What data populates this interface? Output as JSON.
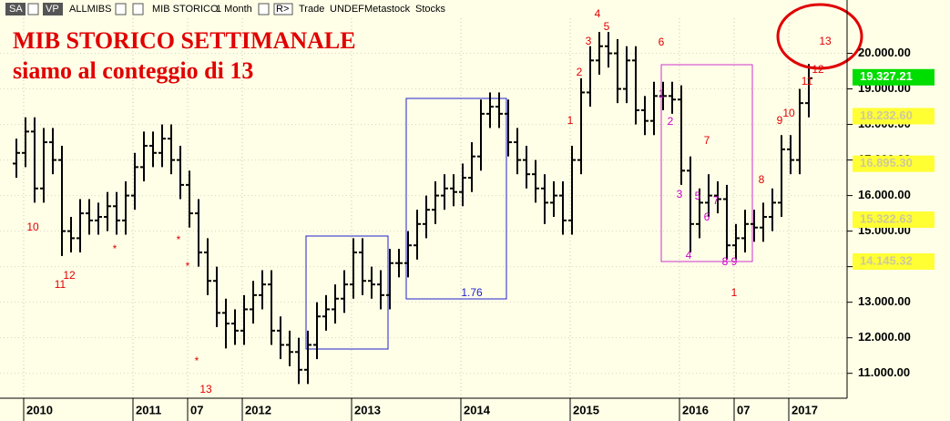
{
  "toolbar": [
    "SA",
    "VP",
    "ALLMIBS",
    "MIB STORICO",
    "1 Month",
    "R>",
    "Trade",
    "UNDEF",
    "Metastock",
    "Stocks"
  ],
  "chart_data": {
    "type": "ohlc",
    "title": "MIB STORICO SETTIMANALE",
    "subtitle": "siamo al conteggio di 13",
    "color": "#000000",
    "categories": [
      null,
      "2010",
      null,
      null,
      null,
      null,
      null,
      null,
      null,
      null,
      null,
      null,
      null,
      "2011",
      null,
      null,
      null,
      null,
      null,
      "07",
      null,
      null,
      null,
      null,
      null,
      "2012",
      null,
      null,
      null,
      null,
      null,
      null,
      null,
      null,
      null,
      null,
      null,
      "2013",
      null,
      null,
      null,
      null,
      null,
      null,
      null,
      null,
      null,
      null,
      null,
      "2014",
      null,
      null,
      null,
      null,
      null,
      null,
      null,
      null,
      null,
      null,
      null,
      "2015",
      null,
      null,
      null,
      null,
      null,
      null,
      null,
      null,
      null,
      null,
      null,
      "2016",
      null,
      null,
      null,
      null,
      null,
      "07",
      null,
      null,
      null,
      null,
      null,
      "2017",
      null,
      null
    ],
    "open": [
      16900,
      17200,
      17800,
      16200,
      17500,
      17000,
      15000,
      14800,
      15500,
      15300,
      15400,
      15700,
      15300,
      16000,
      16800,
      17400,
      17200,
      17600,
      17000,
      16300,
      15500,
      14400,
      13600,
      12700,
      12400,
      12200,
      12800,
      13200,
      13500,
      12200,
      11800,
      11600,
      11100,
      11800,
      12600,
      12800,
      13100,
      13500,
      14400,
      13600,
      13500,
      13200,
      14100,
      14100,
      14600,
      15200,
      15600,
      16000,
      16200,
      16100,
      16500,
      17100,
      18300,
      18500,
      18300,
      17500,
      17000,
      16600,
      16200,
      15800,
      16000,
      15300,
      17000,
      18900,
      19800,
      20200,
      20000,
      19000,
      19800,
      18400,
      18100,
      18800,
      18800,
      18700,
      16700,
      15200,
      15800,
      16000,
      15900,
      14600,
      14800,
      15200,
      15100,
      15400,
      15800,
      17300,
      17000,
      18600
    ],
    "high": [
      17600,
      18200,
      18200,
      17900,
      17900,
      17400,
      15400,
      15900,
      15900,
      15800,
      16100,
      16100,
      16400,
      17200,
      17800,
      17800,
      18000,
      18000,
      17400,
      16700,
      15900,
      14800,
      14000,
      13100,
      12800,
      13200,
      13600,
      13900,
      13900,
      12600,
      12200,
      12000,
      12200,
      13000,
      13200,
      13500,
      13900,
      14800,
      14800,
      14000,
      13900,
      14500,
      14500,
      15000,
      15600,
      16000,
      16400,
      16600,
      16600,
      16900,
      17500,
      18700,
      18900,
      18900,
      18700,
      17900,
      17400,
      17000,
      16600,
      16400,
      16400,
      17400,
      19300,
      20200,
      20600,
      20600,
      20400,
      20200,
      20200,
      18800,
      19200,
      19200,
      19200,
      19100,
      17100,
      16200,
      16600,
      16400,
      16300,
      15200,
      15600,
      15600,
      15800,
      16200,
      17700,
      17700,
      19000,
      19700
    ],
    "low": [
      16500,
      16800,
      15800,
      15800,
      16600,
      14300,
      14400,
      14400,
      14900,
      14900,
      15000,
      14900,
      14900,
      15600,
      16400,
      16800,
      16800,
      16600,
      15900,
      15100,
      14000,
      13200,
      12300,
      11700,
      11800,
      11800,
      12400,
      12800,
      11800,
      11400,
      11200,
      10700,
      10700,
      11400,
      12200,
      12400,
      12700,
      13100,
      13200,
      13100,
      12800,
      12800,
      13700,
      13700,
      14200,
      14800,
      15200,
      15600,
      15700,
      15700,
      16100,
      16700,
      17900,
      17900,
      17100,
      16600,
      16200,
      15800,
      15200,
      15400,
      14900,
      14900,
      16600,
      18500,
      19400,
      19600,
      18600,
      18600,
      18000,
      17700,
      17700,
      18400,
      18300,
      16300,
      14400,
      14800,
      15400,
      15500,
      14200,
      14200,
      14400,
      14700,
      14700,
      15000,
      15400,
      16600,
      16600,
      18200
    ],
    "close": [
      17200,
      17800,
      16200,
      17500,
      17000,
      15000,
      14800,
      15500,
      15300,
      15400,
      15700,
      15300,
      16000,
      16800,
      17400,
      17200,
      17600,
      17000,
      16300,
      15500,
      14400,
      13600,
      12700,
      12400,
      12200,
      12800,
      13200,
      13500,
      12200,
      11800,
      11600,
      11100,
      11800,
      12600,
      12800,
      13100,
      13500,
      14400,
      13600,
      13500,
      13200,
      14100,
      14100,
      14600,
      15200,
      15600,
      16000,
      16200,
      16100,
      16500,
      17100,
      18300,
      18500,
      18300,
      17500,
      17000,
      16600,
      16200,
      15800,
      16000,
      15300,
      17000,
      18900,
      19800,
      20200,
      20000,
      19000,
      19800,
      18400,
      18100,
      18800,
      18800,
      18700,
      16700,
      15200,
      15800,
      16000,
      15900,
      14600,
      14800,
      15200,
      15100,
      15400,
      15800,
      17300,
      17000,
      18600,
      19300
    ],
    "ylim": [
      10300,
      21500
    ],
    "yticks": [
      {
        "value": 11000,
        "label": "11.000.00"
      },
      {
        "value": 12000,
        "label": "12.000.00"
      },
      {
        "value": 13000,
        "label": "13.000.00"
      },
      {
        "value": 14000,
        "label": "14.000.00"
      },
      {
        "value": 15000,
        "label": "15.000.00"
      },
      {
        "value": 16000,
        "label": "16.000.00"
      },
      {
        "value": 17000,
        "label": "17.000.00"
      },
      {
        "value": 18000,
        "label": "18.000.00"
      },
      {
        "value": 19000,
        "label": "19.000.00"
      },
      {
        "value": 20000,
        "label": "20.000.00"
      }
    ],
    "grid": true,
    "price_tags": [
      {
        "value": 19327.21,
        "label": "19.327.21",
        "color": "#00dd00"
      },
      {
        "value": 18232.6,
        "label": "18.232.60",
        "color": "#ffff33"
      },
      {
        "value": 16895.3,
        "label": "16.895.30",
        "color": "#ffff33"
      },
      {
        "value": 15322.63,
        "label": "15.322.63",
        "color": "#ffff33"
      },
      {
        "value": 14145.32,
        "label": "14.145.32",
        "color": "#ffff33"
      }
    ],
    "annotations": [
      "10",
      "11",
      "12",
      "*",
      "*",
      "*",
      "*",
      "13",
      "1",
      "2",
      "3",
      "4",
      "5",
      "6",
      "7",
      "8",
      "9",
      "10",
      "11",
      "12",
      "13",
      "1",
      "1",
      "2",
      "3",
      "4",
      "5",
      "6",
      "7",
      "8",
      "9",
      "1.76"
    ]
  }
}
